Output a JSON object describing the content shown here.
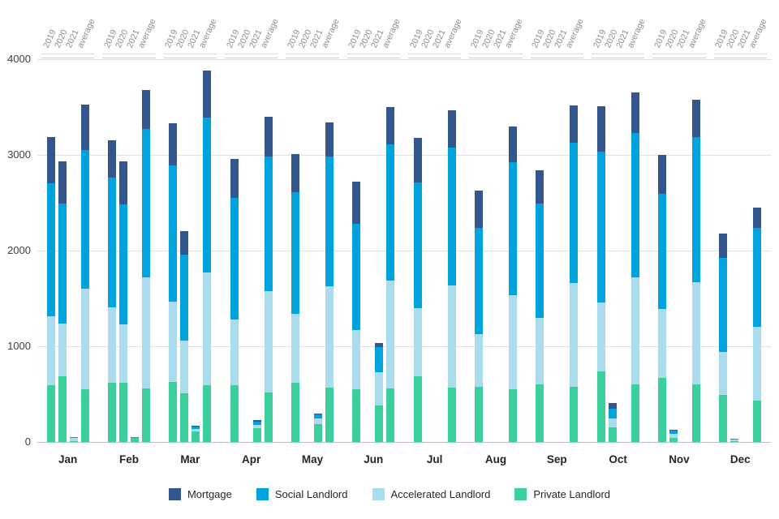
{
  "chart_data": {
    "type": "bar",
    "stacked": true,
    "title": "",
    "ylim": [
      0,
      4000
    ],
    "y_ticks": [
      0,
      1000,
      2000,
      3000,
      4000
    ],
    "bar_groups": [
      "2019",
      "2020",
      "2021",
      "average"
    ],
    "series": [
      {
        "name": "Private Landlord",
        "color": "#3bcf9d"
      },
      {
        "name": "Accelerated Landlord",
        "color": "#abdcee"
      },
      {
        "name": "Social Landlord",
        "color": "#00a3dc"
      },
      {
        "name": "Mortgage",
        "color": "#35568c"
      }
    ],
    "legend_order": [
      "Mortgage",
      "Social Landlord",
      "Accelerated Landlord",
      "Private Landlord"
    ],
    "segment_order_bottom_to_top": [
      "Private Landlord",
      "Accelerated Landlord",
      "Social Landlord",
      "Mortgage"
    ],
    "months": [
      {
        "label": "Jan",
        "bars": {
          "2019": [
            590,
            720,
            1390,
            490
          ],
          "2020": [
            690,
            550,
            1250,
            440
          ],
          "2021": [
            10,
            30,
            8,
            2
          ],
          "average": [
            550,
            1050,
            1450,
            480
          ]
        }
      },
      {
        "label": "Feb",
        "bars": {
          "2019": [
            620,
            790,
            1350,
            390
          ],
          "2020": [
            620,
            610,
            1250,
            450
          ],
          "2021": [
            40,
            6,
            3,
            1
          ],
          "average": [
            560,
            1160,
            1550,
            410
          ]
        }
      },
      {
        "label": "Mar",
        "bars": {
          "2019": [
            630,
            840,
            1420,
            440
          ],
          "2020": [
            510,
            550,
            900,
            240
          ],
          "2021": [
            110,
            30,
            20,
            10
          ],
          "average": [
            590,
            1180,
            1620,
            490
          ]
        }
      },
      {
        "label": "Apr",
        "bars": {
          "2019": [
            590,
            690,
            1270,
            410
          ],
          "2020": null,
          "2021": [
            140,
            40,
            30,
            20
          ],
          "average": [
            520,
            1060,
            1400,
            420
          ]
        }
      },
      {
        "label": "May",
        "bars": {
          "2019": [
            620,
            720,
            1270,
            400
          ],
          "2020": null,
          "2021": [
            190,
            60,
            35,
            15
          ],
          "average": [
            570,
            1060,
            1350,
            360
          ]
        }
      },
      {
        "label": "Jun",
        "bars": {
          "2019": [
            550,
            620,
            1110,
            440
          ],
          "2020": null,
          "2021": [
            380,
            350,
            260,
            40
          ],
          "average": [
            560,
            1130,
            1420,
            390
          ]
        }
      },
      {
        "label": "Jul",
        "bars": {
          "2019": [
            690,
            710,
            1310,
            470
          ],
          "2020": null,
          "2021": null,
          "average": [
            570,
            1070,
            1440,
            390
          ]
        }
      },
      {
        "label": "Aug",
        "bars": {
          "2019": [
            580,
            550,
            1110,
            390
          ],
          "2020": null,
          "2021": null,
          "average": [
            550,
            980,
            1390,
            380
          ]
        }
      },
      {
        "label": "Sep",
        "bars": {
          "2019": [
            600,
            700,
            1190,
            350
          ],
          "2020": null,
          "2021": null,
          "average": [
            580,
            1080,
            1470,
            390
          ]
        }
      },
      {
        "label": "Oct",
        "bars": {
          "2019": [
            740,
            720,
            1570,
            480
          ],
          "2020": [
            150,
            100,
            100,
            60
          ],
          "2021": null,
          "average": [
            600,
            1120,
            1510,
            420
          ]
        }
      },
      {
        "label": "Nov",
        "bars": {
          "2019": [
            670,
            720,
            1200,
            410
          ],
          "2020": [
            40,
            45,
            30,
            15
          ],
          "2021": null,
          "average": [
            600,
            1070,
            1520,
            390
          ]
        }
      },
      {
        "label": "Dec",
        "bars": {
          "2019": [
            490,
            450,
            980,
            260
          ],
          "2020": [
            5,
            20,
            5,
            0
          ],
          "2021": null,
          "average": [
            430,
            770,
            1040,
            210
          ]
        }
      }
    ]
  }
}
